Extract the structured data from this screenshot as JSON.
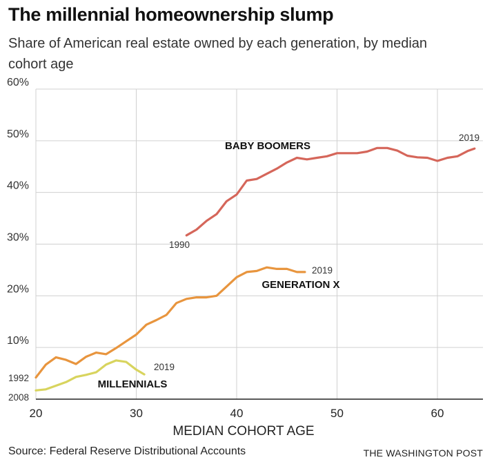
{
  "header": {
    "title": "The millennial homeownership slump",
    "subtitle": "Share of American real estate owned by each generation, by median cohort age"
  },
  "footer": {
    "source": "Source: Federal Reserve Distributional Accounts",
    "credit": "THE WASHINGTON POST"
  },
  "colors": {
    "baby_boomers": "#d5665a",
    "generation_x": "#e8953e",
    "millennials": "#d8d45e",
    "grid": "#d0d0d0",
    "axis": "#222222"
  },
  "chart_data": {
    "type": "line",
    "title": "The millennial homeownership slump",
    "xlabel": "MEDIAN COHORT AGE",
    "ylabel": "",
    "xlim": [
      20,
      65
    ],
    "ylim": [
      0,
      60
    ],
    "x_ticks": [
      20,
      30,
      40,
      50,
      60
    ],
    "y_ticks": [
      10,
      20,
      30,
      40,
      50,
      60
    ],
    "y_tick_labels": [
      "10%",
      "20%",
      "30%",
      "40%",
      "50%",
      "60%"
    ],
    "grid": true,
    "series": [
      {
        "name": "BABY BOOMERS",
        "color_key": "baby_boomers",
        "start_label": "1990",
        "end_label": "2019",
        "points": [
          [
            35,
            31.7
          ],
          [
            36,
            32.8
          ],
          [
            37,
            34.5
          ],
          [
            38,
            35.8
          ],
          [
            39,
            38.3
          ],
          [
            40,
            39.6
          ],
          [
            41,
            42.3
          ],
          [
            42,
            42.6
          ],
          [
            43,
            43.6
          ],
          [
            44,
            44.6
          ],
          [
            45,
            45.8
          ],
          [
            46,
            46.7
          ],
          [
            47,
            46.4
          ],
          [
            48,
            46.7
          ],
          [
            49,
            47.0
          ],
          [
            50,
            47.6
          ],
          [
            51,
            47.6
          ],
          [
            52,
            47.6
          ],
          [
            53,
            47.9
          ],
          [
            54,
            48.6
          ],
          [
            55,
            48.6
          ],
          [
            56,
            48.1
          ],
          [
            57,
            47.1
          ],
          [
            58,
            46.8
          ],
          [
            59,
            46.7
          ],
          [
            60,
            46.1
          ],
          [
            61,
            46.7
          ],
          [
            62,
            47.0
          ],
          [
            63,
            48.0
          ],
          [
            63.7,
            48.5
          ]
        ]
      },
      {
        "name": "GENERATION X",
        "color_key": "generation_x",
        "start_label": "1992",
        "end_label": "2019",
        "points": [
          [
            20,
            4.2
          ],
          [
            21,
            6.7
          ],
          [
            22,
            8.1
          ],
          [
            23,
            7.6
          ],
          [
            24,
            6.8
          ],
          [
            25,
            8.2
          ],
          [
            26,
            9.0
          ],
          [
            27,
            8.7
          ],
          [
            28,
            9.9
          ],
          [
            29,
            11.2
          ],
          [
            30,
            12.5
          ],
          [
            31,
            14.4
          ],
          [
            32,
            15.3
          ],
          [
            33,
            16.3
          ],
          [
            34,
            18.6
          ],
          [
            35,
            19.4
          ],
          [
            36,
            19.7
          ],
          [
            37,
            19.7
          ],
          [
            38,
            20.0
          ],
          [
            39,
            21.8
          ],
          [
            40,
            23.6
          ],
          [
            41,
            24.6
          ],
          [
            42,
            24.8
          ],
          [
            43,
            25.5
          ],
          [
            44,
            25.2
          ],
          [
            45,
            25.2
          ],
          [
            46,
            24.6
          ],
          [
            46.8,
            24.6
          ]
        ]
      },
      {
        "name": "MILLENNIALS",
        "color_key": "millennials",
        "start_label": "2008",
        "end_label": "2019",
        "points": [
          [
            20,
            1.7
          ],
          [
            21,
            1.9
          ],
          [
            22,
            2.6
          ],
          [
            23,
            3.3
          ],
          [
            24,
            4.3
          ],
          [
            25,
            4.7
          ],
          [
            26,
            5.2
          ],
          [
            27,
            6.7
          ],
          [
            28,
            7.5
          ],
          [
            29,
            7.2
          ],
          [
            30,
            5.7
          ],
          [
            30.8,
            4.8
          ]
        ]
      }
    ]
  }
}
